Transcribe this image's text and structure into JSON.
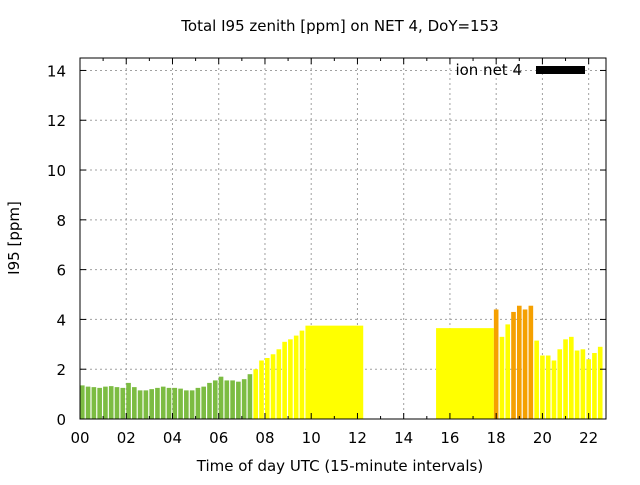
{
  "chart_data": {
    "type": "bar",
    "title": "Total I95 zenith [ppm] on NET 4, DoY=153",
    "xlabel": "Time of day UTC (15-minute intervals)",
    "ylabel": "I95 [ppm]",
    "xlim": [
      0,
      22.75
    ],
    "ylim": [
      0,
      14.5
    ],
    "x_ticks": [
      0,
      2,
      4,
      6,
      8,
      10,
      12,
      14,
      16,
      18,
      20,
      22
    ],
    "x_tick_labels": [
      "00",
      "02",
      "04",
      "06",
      "08",
      "10",
      "12",
      "14",
      "16",
      "18",
      "20",
      "22"
    ],
    "y_ticks": [
      0,
      2,
      4,
      6,
      8,
      10,
      12,
      14
    ],
    "y_tick_labels": [
      "0",
      "2",
      "4",
      "6",
      "8",
      "10",
      "12",
      "14"
    ],
    "grid": true,
    "legend": {
      "position": "top-right",
      "label": "ion net 4",
      "color": "#000000"
    },
    "interval_hours": 0.25,
    "colors": {
      "green": "#7cbc42",
      "yellow": "#ffff00",
      "orange": "#f5a000"
    },
    "bars": [
      {
        "x": 0.0,
        "v": 1.35,
        "c": "green"
      },
      {
        "x": 0.25,
        "v": 1.3,
        "c": "green"
      },
      {
        "x": 0.5,
        "v": 1.28,
        "c": "green"
      },
      {
        "x": 0.75,
        "v": 1.25,
        "c": "green"
      },
      {
        "x": 1.0,
        "v": 1.3,
        "c": "green"
      },
      {
        "x": 1.25,
        "v": 1.32,
        "c": "green"
      },
      {
        "x": 1.5,
        "v": 1.28,
        "c": "green"
      },
      {
        "x": 1.75,
        "v": 1.25,
        "c": "green"
      },
      {
        "x": 2.0,
        "v": 1.45,
        "c": "green"
      },
      {
        "x": 2.25,
        "v": 1.28,
        "c": "green"
      },
      {
        "x": 2.5,
        "v": 1.15,
        "c": "green"
      },
      {
        "x": 2.75,
        "v": 1.15,
        "c": "green"
      },
      {
        "x": 3.0,
        "v": 1.2,
        "c": "green"
      },
      {
        "x": 3.25,
        "v": 1.25,
        "c": "green"
      },
      {
        "x": 3.5,
        "v": 1.3,
        "c": "green"
      },
      {
        "x": 3.75,
        "v": 1.25,
        "c": "green"
      },
      {
        "x": 4.0,
        "v": 1.25,
        "c": "green"
      },
      {
        "x": 4.25,
        "v": 1.22,
        "c": "green"
      },
      {
        "x": 4.5,
        "v": 1.15,
        "c": "green"
      },
      {
        "x": 4.75,
        "v": 1.15,
        "c": "green"
      },
      {
        "x": 5.0,
        "v": 1.25,
        "c": "green"
      },
      {
        "x": 5.25,
        "v": 1.3,
        "c": "green"
      },
      {
        "x": 5.5,
        "v": 1.45,
        "c": "green"
      },
      {
        "x": 5.75,
        "v": 1.55,
        "c": "green"
      },
      {
        "x": 6.0,
        "v": 1.7,
        "c": "green"
      },
      {
        "x": 6.25,
        "v": 1.55,
        "c": "green"
      },
      {
        "x": 6.5,
        "v": 1.55,
        "c": "green"
      },
      {
        "x": 6.75,
        "v": 1.5,
        "c": "green"
      },
      {
        "x": 7.0,
        "v": 1.6,
        "c": "green"
      },
      {
        "x": 7.25,
        "v": 1.8,
        "c": "green"
      },
      {
        "x": 7.5,
        "v": 2.0,
        "c": "yellow"
      },
      {
        "x": 7.75,
        "v": 2.35,
        "c": "yellow"
      },
      {
        "x": 8.0,
        "v": 2.45,
        "c": "yellow"
      },
      {
        "x": 8.25,
        "v": 2.6,
        "c": "yellow"
      },
      {
        "x": 8.5,
        "v": 2.8,
        "c": "yellow"
      },
      {
        "x": 8.75,
        "v": 3.1,
        "c": "yellow"
      },
      {
        "x": 9.0,
        "v": 3.2,
        "c": "yellow"
      },
      {
        "x": 9.25,
        "v": 3.35,
        "c": "yellow"
      },
      {
        "x": 9.5,
        "v": 3.55,
        "c": "yellow"
      },
      {
        "x": 9.75,
        "v": 3.75,
        "c": "yellow",
        "w": 2.5
      },
      {
        "x": 15.4,
        "v": 3.65,
        "c": "yellow",
        "w": 2.5
      },
      {
        "x": 17.9,
        "v": 4.4,
        "c": "orange"
      },
      {
        "x": 18.15,
        "v": 3.3,
        "c": "yellow"
      },
      {
        "x": 18.4,
        "v": 3.8,
        "c": "yellow"
      },
      {
        "x": 18.65,
        "v": 4.3,
        "c": "orange"
      },
      {
        "x": 18.9,
        "v": 4.55,
        "c": "orange"
      },
      {
        "x": 19.15,
        "v": 4.4,
        "c": "orange"
      },
      {
        "x": 19.4,
        "v": 4.55,
        "c": "orange"
      },
      {
        "x": 19.65,
        "v": 3.15,
        "c": "yellow"
      },
      {
        "x": 19.9,
        "v": 2.55,
        "c": "yellow"
      },
      {
        "x": 20.15,
        "v": 2.55,
        "c": "yellow"
      },
      {
        "x": 20.4,
        "v": 2.35,
        "c": "yellow"
      },
      {
        "x": 20.65,
        "v": 2.8,
        "c": "yellow"
      },
      {
        "x": 20.9,
        "v": 3.2,
        "c": "yellow"
      },
      {
        "x": 21.15,
        "v": 3.3,
        "c": "yellow"
      },
      {
        "x": 21.4,
        "v": 2.75,
        "c": "yellow"
      },
      {
        "x": 21.65,
        "v": 2.8,
        "c": "yellow"
      },
      {
        "x": 21.9,
        "v": 2.4,
        "c": "yellow"
      },
      {
        "x": 22.15,
        "v": 2.65,
        "c": "yellow"
      },
      {
        "x": 22.4,
        "v": 2.9,
        "c": "yellow"
      }
    ]
  }
}
